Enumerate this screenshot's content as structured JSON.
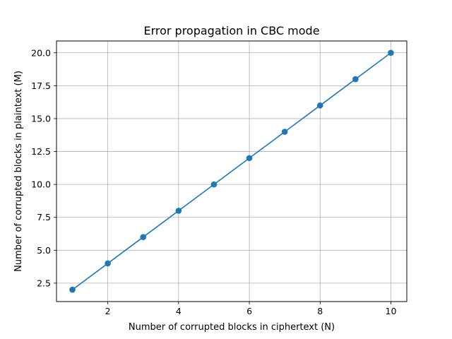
{
  "chart_data": {
    "type": "line",
    "title": "Error propagation in CBC mode",
    "xlabel": "Number of corrupted blocks in ciphertext (N)",
    "ylabel": "Number of corrupted blocks in plaintext (M)",
    "x": [
      1,
      2,
      3,
      4,
      5,
      6,
      7,
      8,
      9,
      10
    ],
    "series": [
      {
        "values": [
          2,
          4,
          6,
          8,
          10,
          12,
          14,
          16,
          18,
          20
        ],
        "color": "#1f77b4",
        "marker": "circle"
      }
    ],
    "xlim": [
      0.55,
      10.45
    ],
    "ylim": [
      1.1,
      20.9
    ],
    "xticks": [
      2,
      4,
      6,
      8,
      10
    ],
    "xtick_labels": [
      "2",
      "4",
      "6",
      "8",
      "10"
    ],
    "yticks": [
      2.5,
      5.0,
      7.5,
      10.0,
      12.5,
      15.0,
      17.5,
      20.0
    ],
    "ytick_labels": [
      "2.5",
      "5.0",
      "7.5",
      "10.0",
      "12.5",
      "15.0",
      "17.5",
      "20.0"
    ],
    "grid": true,
    "grid_color": "#b0b0b0"
  }
}
